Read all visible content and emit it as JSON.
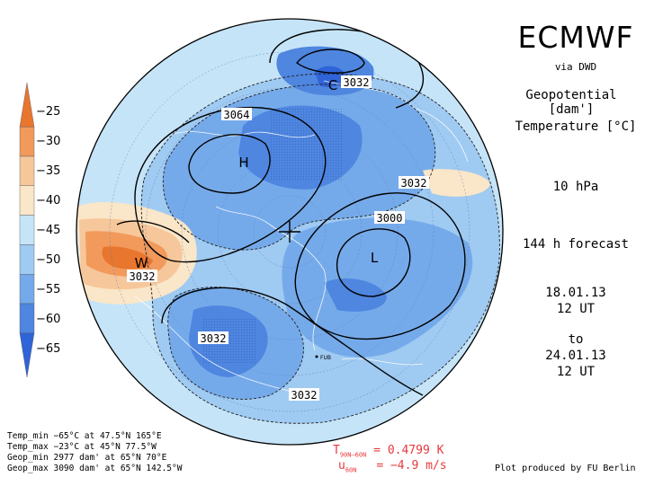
{
  "header": {
    "title": "ECMWF",
    "source": "via DWD",
    "variable1": "Geopotential [dam']",
    "variable2": "Temperature [°C]",
    "level": "10 hPa",
    "forecast": "144 h forecast",
    "init_date": "18.01.13",
    "init_time": "12 UT",
    "to": "to",
    "valid_date": "24.01.13",
    "valid_time": "12 UT"
  },
  "colorbar": {
    "labels": [
      "−25",
      "−30",
      "−35",
      "−40",
      "−45",
      "−50",
      "−55",
      "−60",
      "−65"
    ],
    "colors": [
      "#e8762e",
      "#f29a5c",
      "#f6c79a",
      "#fae6c8",
      "#c6e4f8",
      "#9fcaf2",
      "#75aaea",
      "#4e86e0",
      "#2f63d8"
    ]
  },
  "map_labels": {
    "contours": [
      "3064",
      "3032",
      "3032",
      "3000",
      "3032",
      "3032",
      "3032"
    ],
    "centers": [
      "C",
      "H",
      "W",
      "L"
    ],
    "station": "FUB"
  },
  "stats": {
    "temp_min": "Temp_min −65°C at 47.5°N 165°E",
    "temp_max": "Temp_max −23°C at 45°N 77.5°W",
    "geop_min": "Geop_min 2977 dam' at 65°N 70°E",
    "geop_max": "Geop_max 3090 dam' at 65°N 142.5°W"
  },
  "diagnostics": {
    "t_label": "T",
    "t_sub": "90N–60N",
    "t_value": "= 0.4799 K",
    "u_label": "u",
    "u_sub": "60N",
    "u_value": "= −4.9 m/s"
  },
  "credit": "Plot produced by FU Berlin"
}
